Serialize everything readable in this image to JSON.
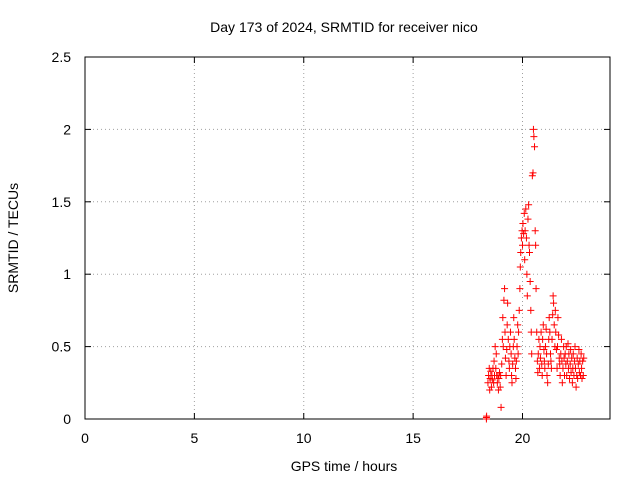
{
  "chart_data": {
    "type": "scatter",
    "title": "Day 173 of 2024, SRMTID for receiver nico",
    "xlabel": "GPS time / hours",
    "ylabel": "SRMTID / TECUs",
    "xlim": [
      0,
      24
    ],
    "ylim": [
      0,
      2.5
    ],
    "xticks": [
      0,
      5,
      10,
      15,
      20
    ],
    "xtick_labels": [
      "0",
      "5",
      "10",
      "15",
      "20"
    ],
    "yticks": [
      0,
      0.5,
      1,
      1.5,
      2,
      2.5
    ],
    "ytick_labels": [
      "0",
      "0.5",
      "1",
      "1.5",
      "2",
      "2.5"
    ],
    "grid": true,
    "marker": "+",
    "series": [
      {
        "name": "SRMTID",
        "color": "#ff0000",
        "points": [
          [
            18.35,
            0.01
          ],
          [
            18.35,
            0.0
          ],
          [
            18.36,
            0.02
          ],
          [
            18.42,
            0.25
          ],
          [
            18.45,
            0.3
          ],
          [
            18.48,
            0.35
          ],
          [
            18.5,
            0.2
          ],
          [
            18.52,
            0.28
          ],
          [
            18.55,
            0.33
          ],
          [
            18.58,
            0.22
          ],
          [
            18.6,
            0.3
          ],
          [
            18.62,
            0.27
          ],
          [
            18.65,
            0.35
          ],
          [
            18.68,
            0.25
          ],
          [
            18.7,
            0.4
          ],
          [
            18.72,
            0.3
          ],
          [
            18.75,
            0.5
          ],
          [
            18.78,
            0.35
          ],
          [
            18.8,
            0.45
          ],
          [
            18.82,
            0.3
          ],
          [
            18.85,
            0.25
          ],
          [
            18.88,
            0.3
          ],
          [
            18.9,
            0.2
          ],
          [
            18.92,
            0.28
          ],
          [
            18.95,
            0.32
          ],
          [
            18.98,
            0.22
          ],
          [
            19.0,
            0.3
          ],
          [
            19.02,
            0.08
          ],
          [
            19.05,
            0.38
          ],
          [
            19.08,
            0.55
          ],
          [
            19.1,
            0.7
          ],
          [
            19.12,
            0.5
          ],
          [
            19.15,
            0.82
          ],
          [
            19.18,
            0.9
          ],
          [
            19.2,
            0.6
          ],
          [
            19.22,
            0.42
          ],
          [
            19.25,
            0.3
          ],
          [
            19.28,
            0.48
          ],
          [
            19.3,
            0.65
          ],
          [
            19.32,
            0.8
          ],
          [
            19.35,
            0.55
          ],
          [
            19.38,
            0.4
          ],
          [
            19.4,
            0.35
          ],
          [
            19.42,
            0.5
          ],
          [
            19.45,
            0.6
          ],
          [
            19.48,
            0.45
          ],
          [
            19.5,
            0.3
          ],
          [
            19.52,
            0.25
          ],
          [
            19.55,
            0.38
          ],
          [
            19.58,
            0.5
          ],
          [
            19.6,
            0.7
          ],
          [
            19.62,
            0.55
          ],
          [
            19.65,
            0.42
          ],
          [
            19.68,
            0.35
          ],
          [
            19.7,
            0.28
          ],
          [
            19.72,
            0.4
          ],
          [
            19.75,
            0.5
          ],
          [
            19.78,
            0.65
          ],
          [
            19.8,
            0.45
          ],
          [
            19.82,
            0.6
          ],
          [
            19.85,
            0.75
          ],
          [
            19.88,
            0.9
          ],
          [
            19.9,
            1.05
          ],
          [
            19.92,
            1.15
          ],
          [
            19.95,
            1.25
          ],
          [
            19.98,
            1.3
          ],
          [
            20.0,
            1.2
          ],
          [
            20.02,
            1.35
          ],
          [
            20.05,
            1.28
          ],
          [
            20.08,
            1.42
          ],
          [
            20.1,
            1.1
          ],
          [
            20.12,
            1.3
          ],
          [
            20.15,
            1.45
          ],
          [
            20.18,
            1.25
          ],
          [
            20.2,
            1.0
          ],
          [
            20.22,
            0.85
          ],
          [
            20.25,
            1.38
          ],
          [
            20.28,
            1.48
          ],
          [
            20.3,
            1.2
          ],
          [
            20.32,
            1.15
          ],
          [
            20.35,
            0.95
          ],
          [
            20.38,
            0.75
          ],
          [
            20.4,
            0.6
          ],
          [
            20.42,
            0.45
          ],
          [
            20.45,
            1.68
          ],
          [
            20.48,
            1.7
          ],
          [
            20.5,
            2.0
          ],
          [
            20.52,
            1.95
          ],
          [
            20.55,
            1.88
          ],
          [
            20.58,
            1.3
          ],
          [
            20.6,
            1.2
          ],
          [
            20.62,
            0.9
          ],
          [
            20.65,
            0.6
          ],
          [
            20.68,
            0.4
          ],
          [
            20.7,
            0.32
          ],
          [
            20.72,
            0.45
          ],
          [
            20.75,
            0.55
          ],
          [
            20.78,
            0.35
          ],
          [
            20.8,
            0.5
          ],
          [
            20.82,
            0.42
          ],
          [
            20.85,
            0.6
          ],
          [
            20.88,
            0.38
          ],
          [
            20.9,
            0.3
          ],
          [
            20.92,
            0.55
          ],
          [
            20.95,
            0.65
          ],
          [
            20.98,
            0.48
          ],
          [
            21.0,
            0.4
          ],
          [
            21.02,
            0.35
          ],
          [
            21.05,
            0.5
          ],
          [
            21.08,
            0.62
          ],
          [
            21.1,
            0.45
          ],
          [
            21.12,
            0.3
          ],
          [
            21.15,
            0.25
          ],
          [
            21.18,
            0.38
          ],
          [
            21.2,
            0.55
          ],
          [
            21.22,
            0.7
          ],
          [
            21.25,
            0.6
          ],
          [
            21.28,
            0.45
          ],
          [
            21.3,
            0.4
          ],
          [
            21.32,
            0.35
          ],
          [
            21.35,
            0.55
          ],
          [
            21.38,
            0.72
          ],
          [
            21.4,
            0.85
          ],
          [
            21.42,
            0.8
          ],
          [
            21.45,
            0.65
          ],
          [
            21.48,
            0.5
          ],
          [
            21.5,
            0.75
          ],
          [
            21.52,
            0.6
          ],
          [
            21.55,
            0.48
          ],
          [
            21.58,
            0.35
          ],
          [
            21.6,
            0.5
          ],
          [
            21.62,
            0.7
          ],
          [
            21.65,
            0.58
          ],
          [
            21.68,
            0.42
          ],
          [
            21.7,
            0.38
          ],
          [
            21.72,
            0.3
          ],
          [
            21.75,
            0.45
          ],
          [
            21.78,
            0.55
          ],
          [
            21.8,
            0.4
          ],
          [
            21.82,
            0.25
          ],
          [
            21.85,
            0.35
          ],
          [
            21.88,
            0.5
          ],
          [
            21.9,
            0.42
          ],
          [
            21.92,
            0.3
          ],
          [
            21.95,
            0.45
          ],
          [
            21.98,
            0.38
          ],
          [
            22.0,
            0.5
          ],
          [
            22.02,
            0.3
          ],
          [
            22.05,
            0.4
          ],
          [
            22.08,
            0.52
          ],
          [
            22.1,
            0.35
          ],
          [
            22.12,
            0.45
          ],
          [
            22.15,
            0.28
          ],
          [
            22.18,
            0.38
          ],
          [
            22.2,
            0.48
          ],
          [
            22.22,
            0.32
          ],
          [
            22.25,
            0.42
          ],
          [
            22.28,
            0.25
          ],
          [
            22.3,
            0.35
          ],
          [
            22.32,
            0.45
          ],
          [
            22.35,
            0.3
          ],
          [
            22.38,
            0.4
          ],
          [
            22.4,
            0.5
          ],
          [
            22.42,
            0.35
          ],
          [
            22.45,
            0.22
          ],
          [
            22.48,
            0.3
          ],
          [
            22.5,
            0.42
          ],
          [
            22.52,
            0.28
          ],
          [
            22.55,
            0.38
          ],
          [
            22.58,
            0.48
          ],
          [
            22.6,
            0.32
          ],
          [
            22.62,
            0.4
          ],
          [
            22.65,
            0.3
          ],
          [
            22.68,
            0.45
          ],
          [
            22.7,
            0.35
          ],
          [
            22.72,
            0.28
          ],
          [
            22.75,
            0.4
          ],
          [
            22.78,
            0.3
          ],
          [
            22.8,
            0.42
          ]
        ]
      }
    ]
  }
}
